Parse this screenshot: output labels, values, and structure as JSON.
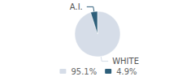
{
  "chart_data": {
    "type": "pie",
    "categories": [
      "WHITE",
      "A.I."
    ],
    "values": [
      95.1,
      4.9
    ],
    "value_labels": [
      "95.1%",
      "4.9%"
    ],
    "colors": [
      "#d6dde8",
      "#2e5f7a"
    ],
    "legend": "bottom"
  }
}
